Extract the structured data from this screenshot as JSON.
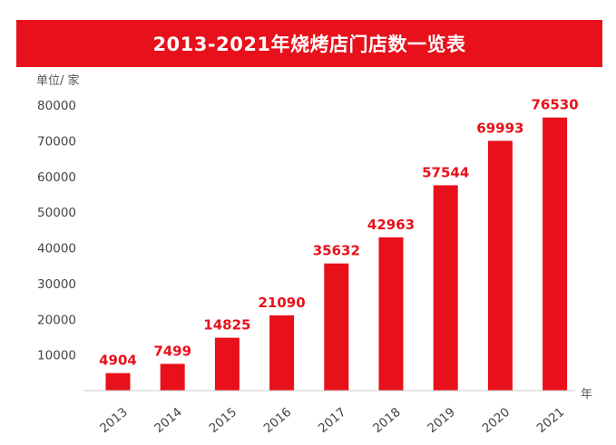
{
  "title": "2013-2021年烧烤店门店数一览表",
  "unit_label": "单位/ 家",
  "x_unit_label": "年",
  "colors": {
    "bar": "#e8101a",
    "banner": "#e8101a",
    "label": "#e8101a"
  },
  "chart_data": {
    "type": "bar",
    "title": "2013-2021年烧烤店门店数一览表",
    "ylabel": "单位/ 家",
    "xlabel": "年",
    "categories": [
      "2013",
      "2014",
      "2015",
      "2016",
      "2017",
      "2018",
      "2019",
      "2020",
      "2021"
    ],
    "values": [
      4904,
      7499,
      14825,
      21090,
      35632,
      42963,
      57544,
      69993,
      76530
    ],
    "yticks": [
      "10000",
      "20000",
      "30000",
      "40000",
      "50000",
      "60000",
      "70000",
      "80000"
    ],
    "ylim": [
      0,
      80000
    ],
    "grid": false,
    "legend": "none"
  }
}
